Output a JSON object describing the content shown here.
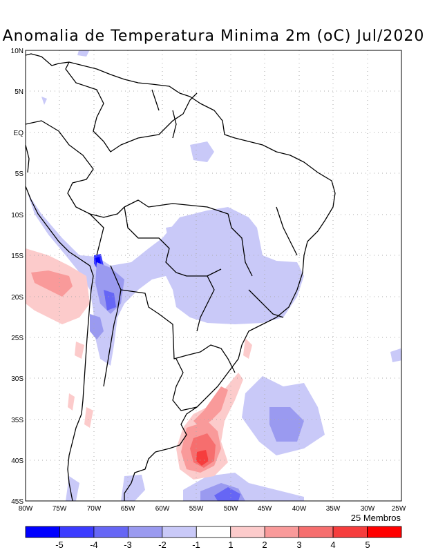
{
  "title": "Anomalia de Temperatura Minima 2m (oC) Jul/2020",
  "members_label": "25 Membros",
  "map": {
    "lat_labels": [
      "10N",
      "5N",
      "EQ",
      "5S",
      "10S",
      "15S",
      "20S",
      "25S",
      "30S",
      "35S",
      "40S",
      "45S"
    ],
    "lon_labels": [
      "80W",
      "75W",
      "70W",
      "65W",
      "60W",
      "55W",
      "50W",
      "45W",
      "40W",
      "35W",
      "30W",
      "25W"
    ],
    "lon_range": [
      -80,
      -25
    ],
    "lat_range": [
      -45,
      10
    ]
  },
  "colorbar": {
    "colors": [
      "#0000ff",
      "#3b3bff",
      "#6666f5",
      "#9a9af0",
      "#c9c9f8",
      "#ffffff",
      "#fccbcb",
      "#f99a9a",
      "#f66e6e",
      "#f63d3d",
      "#ff0000"
    ],
    "tick_labels": [
      "-5",
      "-4",
      "-3",
      "-2",
      "-1",
      "1",
      "2",
      "3",
      "4",
      "5"
    ]
  }
}
